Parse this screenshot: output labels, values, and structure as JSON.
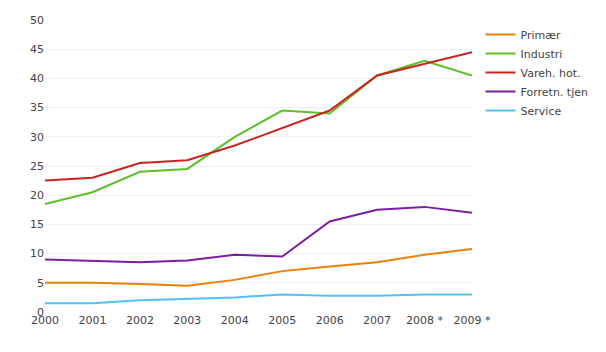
{
  "chart_data": {
    "type": "line",
    "categories": [
      "2000",
      "2001",
      "2002",
      "2003",
      "2004",
      "2005",
      "2006",
      "2007",
      "2008 *",
      "2009 *"
    ],
    "series": [
      {
        "name": "Primær",
        "color": "#E8820A",
        "values": [
          5.0,
          5.0,
          4.8,
          4.5,
          5.5,
          7.0,
          7.8,
          8.5,
          9.8,
          10.8
        ]
      },
      {
        "name": "Industri",
        "color": "#5CBF2A",
        "values": [
          18.5,
          20.5,
          24.0,
          24.5,
          30.0,
          34.5,
          34.0,
          40.5,
          43.0,
          40.5
        ]
      },
      {
        "name": "Vareh. hot.",
        "color": "#CC2222",
        "values": [
          22.5,
          23.0,
          25.5,
          26.0,
          28.5,
          31.5,
          34.5,
          40.5,
          42.5,
          44.5
        ]
      },
      {
        "name": "Forretn. tjen",
        "color": "#7B1FA2",
        "values": [
          9.0,
          8.8,
          8.5,
          8.8,
          9.8,
          9.5,
          15.5,
          17.5,
          18.0,
          17.0
        ]
      },
      {
        "name": "Service",
        "color": "#4FC3F7",
        "values": [
          1.5,
          1.5,
          2.0,
          2.2,
          2.5,
          3.0,
          2.8,
          2.8,
          3.0,
          3.0
        ]
      }
    ],
    "ylim": [
      0,
      50
    ],
    "yticks": [
      0,
      5,
      10,
      15,
      20,
      25,
      30,
      35,
      40,
      45,
      50
    ],
    "grid": true,
    "legend": "upper right"
  }
}
